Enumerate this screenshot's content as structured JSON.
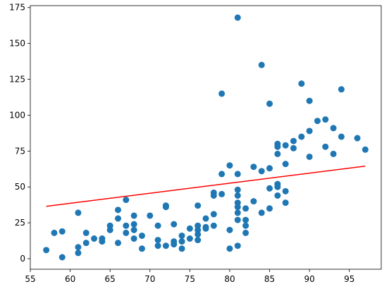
{
  "chart_data": {
    "type": "scatter",
    "xlim": [
      55,
      99
    ],
    "ylim": [
      -7.35,
      176.35
    ],
    "xticks": [
      55,
      60,
      65,
      70,
      75,
      80,
      85,
      90,
      95
    ],
    "yticks": [
      0,
      25,
      50,
      75,
      100,
      125,
      150,
      175
    ],
    "series": [
      {
        "type": "scatter",
        "color": "#1f77b4",
        "x": [
          57,
          58,
          59,
          59,
          61,
          61,
          61,
          62,
          62,
          63,
          64,
          64,
          65,
          65,
          66,
          66,
          66,
          67,
          67,
          67,
          68,
          68,
          68,
          68,
          69,
          69,
          70,
          71,
          71,
          71,
          72,
          72,
          72,
          73,
          73,
          73,
          74,
          74,
          74,
          75,
          75,
          76,
          76,
          76,
          76,
          76,
          77,
          77,
          77,
          78,
          78,
          78,
          78,
          79,
          79,
          79,
          80,
          80,
          80,
          81,
          81,
          81,
          81,
          81,
          81,
          81,
          81,
          81,
          82,
          82,
          82,
          82,
          83,
          83,
          84,
          84,
          84,
          85,
          85,
          85,
          85,
          86,
          86,
          86,
          86,
          86,
          86,
          87,
          87,
          87,
          87,
          88,
          88,
          89,
          89,
          90,
          90,
          90,
          91,
          92,
          92,
          93,
          93,
          94,
          94,
          96,
          97
        ],
        "values": [
          6,
          18,
          19,
          1,
          32,
          8,
          4,
          18,
          11,
          14,
          14,
          12,
          23,
          20,
          34,
          28,
          11,
          41,
          23,
          18,
          30,
          24,
          20,
          14,
          16,
          7,
          30,
          23,
          13,
          9,
          37,
          36,
          9,
          24,
          12,
          10,
          16,
          12,
          7,
          21,
          14,
          37,
          23,
          20,
          17,
          13,
          28,
          22,
          21,
          46,
          44,
          31,
          23,
          115,
          59,
          45,
          65,
          20,
          7,
          168,
          59,
          48,
          44,
          39,
          36,
          32,
          27,
          9,
          35,
          27,
          23,
          18,
          64,
          40,
          135,
          61,
          32,
          108,
          63,
          49,
          35,
          80,
          78,
          73,
          52,
          50,
          44,
          79,
          66,
          47,
          39,
          82,
          77,
          122,
          85,
          110,
          89,
          71,
          96,
          97,
          78,
          91,
          73,
          118,
          85,
          84,
          76
        ]
      },
      {
        "type": "line",
        "color": "#ff0000",
        "x": [
          57,
          97
        ],
        "values": [
          36.5,
          64.5
        ]
      }
    ]
  }
}
